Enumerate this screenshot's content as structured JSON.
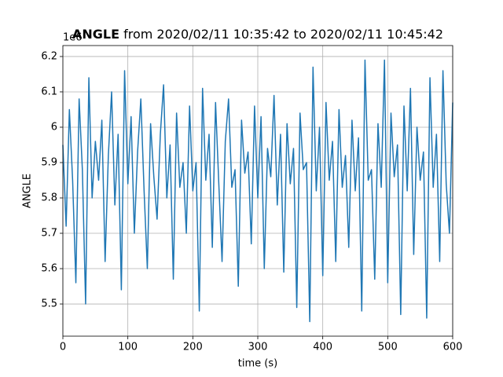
{
  "chart_data": {
    "type": "line",
    "title": "ANGLE",
    "title_suffix": "from 2020/02/11 10:35:42 to 2020/02/11 10:45:42",
    "x_label": "time (s)",
    "y_label": "ANGLE",
    "y_offset_label": "1e6",
    "xlim": [
      0,
      600
    ],
    "ylim": [
      5.409,
      6.231
    ],
    "xticks": [
      0,
      100,
      200,
      300,
      400,
      500,
      600
    ],
    "yticks": [
      5.5,
      5.6,
      5.7,
      5.8,
      5.9,
      6.0,
      6.1,
      6.2
    ],
    "grid": true,
    "series": [
      {
        "name": "ANGLE",
        "color": "#1f77b4",
        "x": [
          0,
          5,
          10,
          15,
          20,
          25,
          30,
          35,
          40,
          45,
          50,
          55,
          60,
          65,
          70,
          75,
          80,
          85,
          90,
          95,
          100,
          105,
          110,
          115,
          120,
          125,
          130,
          135,
          140,
          145,
          150,
          155,
          160,
          165,
          170,
          175,
          180,
          185,
          190,
          195,
          200,
          205,
          210,
          215,
          220,
          225,
          230,
          235,
          240,
          245,
          250,
          255,
          260,
          265,
          270,
          275,
          280,
          285,
          290,
          295,
          300,
          305,
          310,
          315,
          320,
          325,
          330,
          335,
          340,
          345,
          350,
          355,
          360,
          365,
          370,
          375,
          380,
          385,
          390,
          395,
          400,
          405,
          410,
          415,
          420,
          425,
          430,
          435,
          440,
          445,
          450,
          455,
          460,
          465,
          470,
          475,
          480,
          485,
          490,
          495,
          500,
          505,
          510,
          515,
          520,
          525,
          530,
          535,
          540,
          545,
          550,
          555,
          560,
          565,
          570,
          575,
          580,
          585,
          590,
          595,
          600
        ],
        "values": [
          5.95,
          5.72,
          6.05,
          5.85,
          5.56,
          6.08,
          5.88,
          5.5,
          6.14,
          5.8,
          5.96,
          5.85,
          6.02,
          5.62,
          5.92,
          6.1,
          5.78,
          5.98,
          5.54,
          6.16,
          5.84,
          6.03,
          5.7,
          5.93,
          6.08,
          5.82,
          5.6,
          6.01,
          5.86,
          5.74,
          5.98,
          6.12,
          5.8,
          5.95,
          5.57,
          6.04,
          5.83,
          5.9,
          5.7,
          6.06,
          5.82,
          5.9,
          5.48,
          6.11,
          5.85,
          5.98,
          5.66,
          6.07,
          5.84,
          5.62,
          5.96,
          6.08,
          5.83,
          5.88,
          5.55,
          6.02,
          5.87,
          5.93,
          5.67,
          6.06,
          5.8,
          6.03,
          5.6,
          5.94,
          5.86,
          6.09,
          5.78,
          5.98,
          5.59,
          6.01,
          5.84,
          5.94,
          5.49,
          6.04,
          5.88,
          5.9,
          5.45,
          6.17,
          5.82,
          6.0,
          5.58,
          6.07,
          5.85,
          5.96,
          5.62,
          6.05,
          5.83,
          5.92,
          5.66,
          6.02,
          5.82,
          5.97,
          5.48,
          6.19,
          5.85,
          5.88,
          5.57,
          6.01,
          5.83,
          6.19,
          5.56,
          6.04,
          5.86,
          5.95,
          5.47,
          6.06,
          5.82,
          6.11,
          5.64,
          6.0,
          5.85,
          5.93,
          5.46,
          6.14,
          5.83,
          5.98,
          5.62,
          6.16,
          5.84,
          5.7,
          6.07
        ]
      }
    ]
  }
}
